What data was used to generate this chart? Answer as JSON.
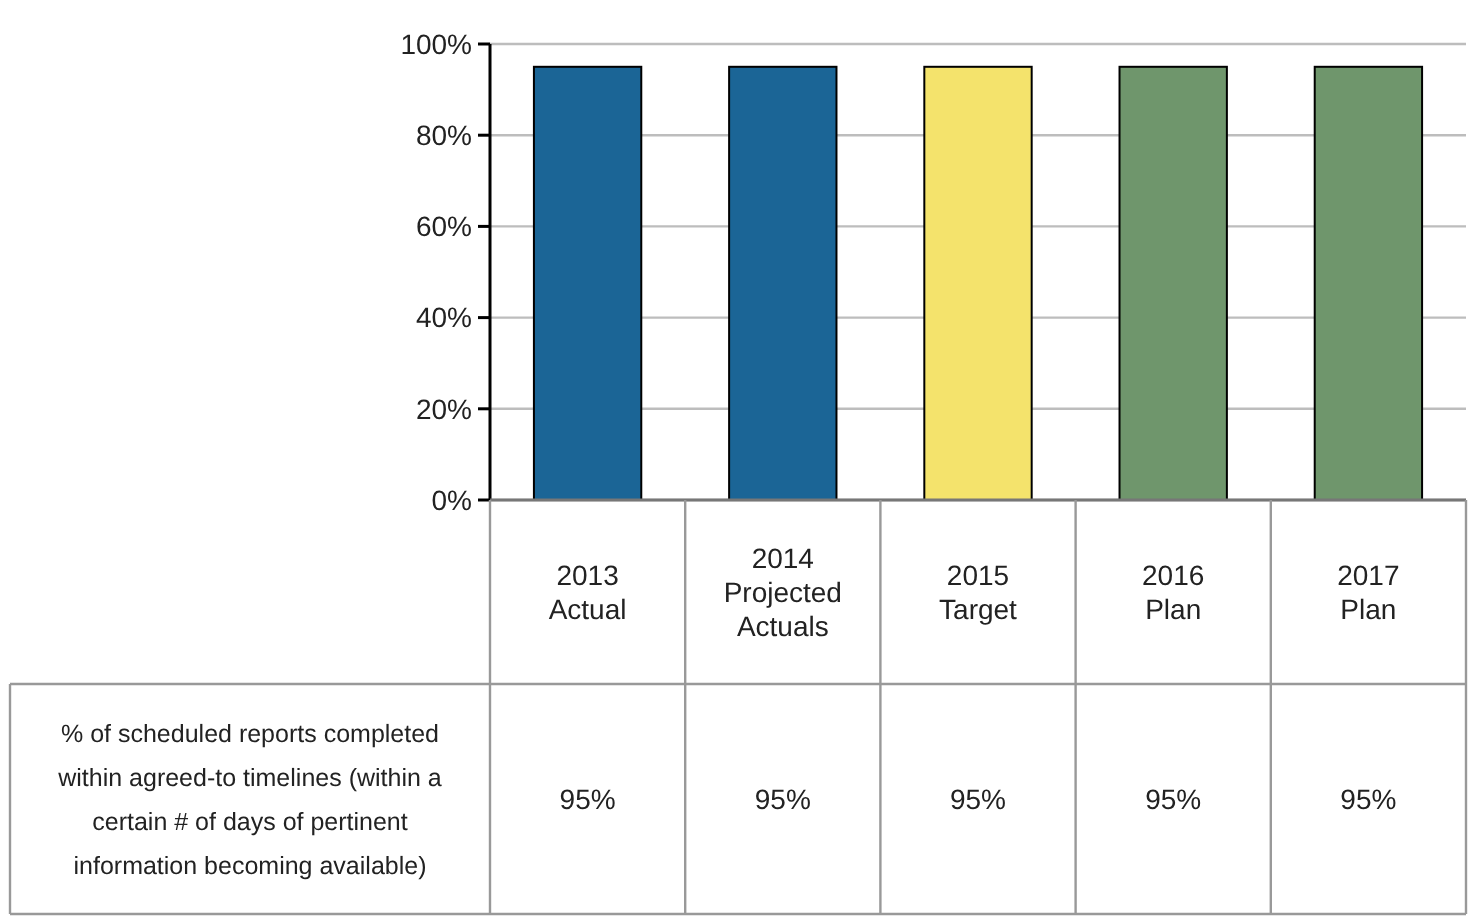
{
  "chart_data": {
    "type": "bar",
    "categories": [
      "2013\nActual",
      "2014\nProjected\nActuals",
      "2015\nTarget",
      "2016\nPlan",
      "2017\nPlan"
    ],
    "series": [
      {
        "name": "% of scheduled reports completed within agreed-to timelines (within a certain # of days of pertinent information becoming available)",
        "colors": [
          "#1b6596",
          "#1b6596",
          "#f4e36c",
          "#6f966c",
          "#6f966c"
        ],
        "values": [
          95,
          95,
          95,
          95,
          95
        ],
        "value_labels": [
          "95%",
          "95%",
          "95%",
          "95%",
          "95%"
        ]
      }
    ],
    "ylim": [
      0,
      100
    ],
    "yticks": [
      {
        "value": 0,
        "label": "0%"
      },
      {
        "value": 20,
        "label": "20%"
      },
      {
        "value": 40,
        "label": "40%"
      },
      {
        "value": 60,
        "label": "60%"
      },
      {
        "value": 80,
        "label": "80%"
      },
      {
        "value": 100,
        "label": "100%"
      }
    ],
    "grid": "y"
  }
}
